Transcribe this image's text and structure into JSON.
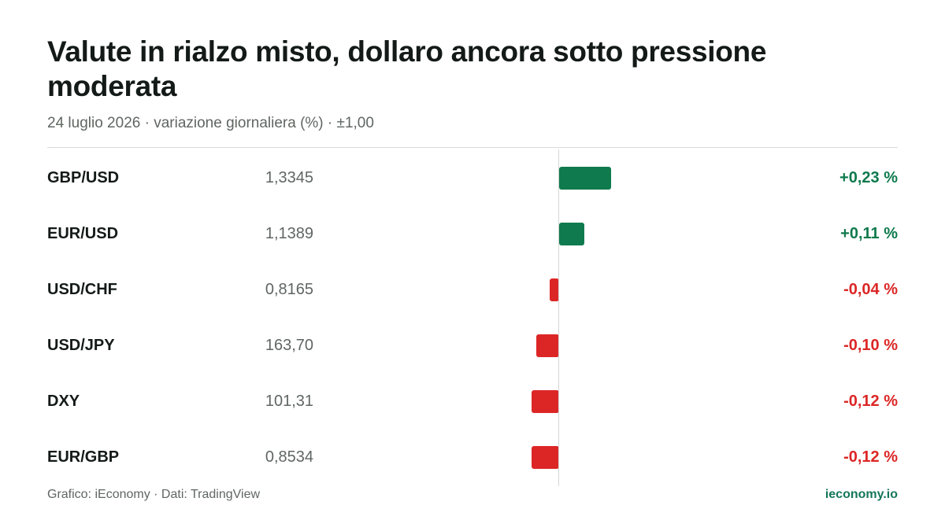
{
  "header": {
    "title": "Valute in rialzo misto, dollaro ancora sotto pressione moderata",
    "subtitle": "24 luglio 2026 · variazione giornaliera (%) · ±1,00"
  },
  "footer": {
    "source": "Grafico: iEconomy · Dati: TradingView",
    "brand": "ieconomy.io"
  },
  "colors": {
    "positive": "#0f7a4d",
    "negative": "#dc2626"
  },
  "chart_data": {
    "type": "bar",
    "orientation": "horizontal",
    "title": "Valute in rialzo misto, dollaro ancora sotto pressione moderata",
    "subtitle": "24 luglio 2026 · variazione giornaliera (%) · ±1,00",
    "xlim": [
      -1.0,
      1.0
    ],
    "grid": false,
    "categories": [
      "GBP/USD",
      "EUR/USD",
      "USD/CHF",
      "USD/JPY",
      "DXY",
      "EUR/GBP"
    ],
    "rows": [
      {
        "pair": "GBP/USD",
        "price": "1,3345",
        "change": 0.23,
        "change_label": "+0,23 %"
      },
      {
        "pair": "EUR/USD",
        "price": "1,1389",
        "change": 0.11,
        "change_label": "+0,11 %"
      },
      {
        "pair": "USD/CHF",
        "price": "0,8165",
        "change": -0.04,
        "change_label": "-0,04 %"
      },
      {
        "pair": "USD/JPY",
        "price": "163,70",
        "change": -0.1,
        "change_label": "-0,10 %"
      },
      {
        "pair": "DXY",
        "price": "101,31",
        "change": -0.12,
        "change_label": "-0,12 %"
      },
      {
        "pair": "EUR/GBP",
        "price": "0,8534",
        "change": -0.12,
        "change_label": "-0,12 %"
      }
    ]
  }
}
